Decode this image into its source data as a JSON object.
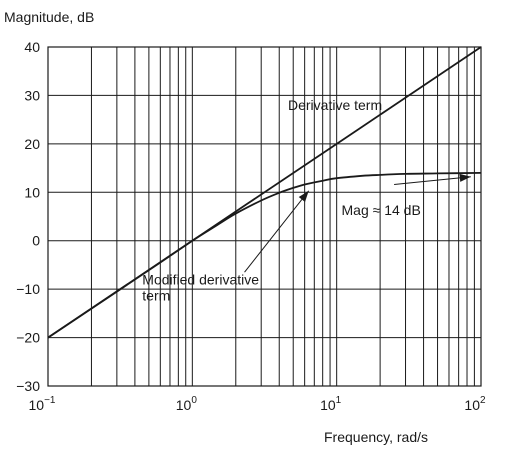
{
  "chart_data": {
    "type": "line",
    "xscale": "log",
    "xlim": [
      0.1,
      100
    ],
    "ylim": [
      -30,
      40
    ],
    "grid": true,
    "xlabel": "Frequency, rad/s",
    "ylabel": "Magnitude, dB",
    "xticks": [
      {
        "value": 0.1,
        "base": "10",
        "exp": "−1"
      },
      {
        "value": 1,
        "base": "10",
        "exp": "0"
      },
      {
        "value": 10,
        "base": "10",
        "exp": "1"
      },
      {
        "value": 100,
        "base": "10",
        "exp": "2"
      }
    ],
    "yticks": [
      "40",
      "30",
      "20",
      "10",
      "0",
      "−10",
      "−20",
      "−30"
    ],
    "ytick_values": [
      40,
      30,
      20,
      10,
      0,
      -10,
      -20,
      -30
    ],
    "series": [
      {
        "name": "Derivative term",
        "x": [
          0.1,
          1,
          10,
          100
        ],
        "y": [
          -20,
          0,
          20,
          40
        ]
      },
      {
        "name": "Modified derivative term",
        "x": [
          0.1,
          0.3,
          0.6,
          1,
          1.5,
          2,
          3,
          4,
          5,
          6,
          8,
          10,
          15,
          20,
          30,
          50,
          100
        ],
        "y": [
          -20,
          -10.5,
          -4.5,
          0,
          3.3,
          5.6,
          8.3,
          9.9,
          10.9,
          11.6,
          12.4,
          12.9,
          13.4,
          13.6,
          13.8,
          13.9,
          14
        ]
      }
    ],
    "annotations": [
      {
        "text": "Derivative term",
        "x": 4.6,
        "y": 27
      },
      {
        "text_line1": "Modified derivative",
        "text_line2": "term",
        "x": 0.45,
        "y": -9
      },
      {
        "text": "Mag ≈ 14 dB",
        "x": 10.8,
        "y": 5.3
      }
    ]
  }
}
